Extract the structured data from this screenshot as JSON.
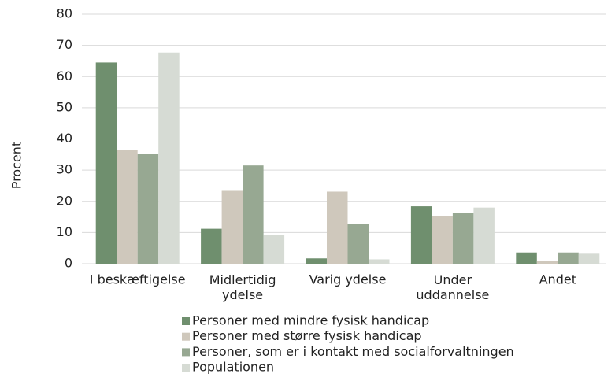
{
  "chart_data": {
    "type": "bar",
    "y_label": "Procent",
    "categories": [
      "I beskæftigelse",
      "Midlertidig\nydelse",
      "Varig ydelse",
      "Under\nuddannelse",
      "Andet"
    ],
    "series": [
      {
        "name": "Personer med mindre fysisk handicap",
        "color": "#6f8f6e",
        "values": [
          64.5,
          11.2,
          1.7,
          18.4,
          3.6
        ]
      },
      {
        "name": "Personer med større fysisk handicap",
        "color": "#cfc8bc",
        "values": [
          36.5,
          23.6,
          23.1,
          15.2,
          1.0
        ]
      },
      {
        "name": "Personer, som er i kontakt med socialforvaltningen",
        "color": "#97a892",
        "values": [
          35.3,
          31.5,
          12.7,
          16.3,
          3.6
        ]
      },
      {
        "name": "Populationen",
        "color": "#d6dbd4",
        "values": [
          67.7,
          9.2,
          1.4,
          18.0,
          3.2
        ]
      }
    ],
    "ylim": [
      0,
      80
    ],
    "yticks": [
      0,
      10,
      20,
      30,
      40,
      50,
      60,
      70,
      80
    ],
    "grid": true,
    "legend": "bottom"
  }
}
